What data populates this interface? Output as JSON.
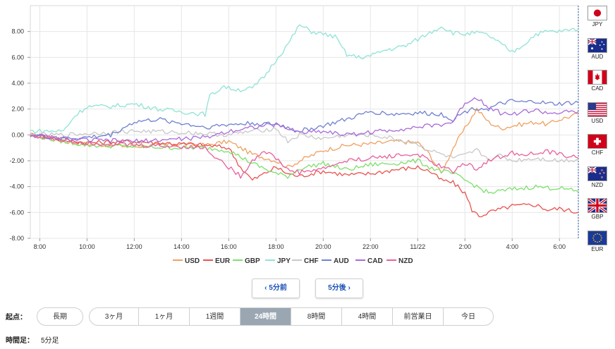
{
  "chart_data": {
    "type": "line",
    "x_ticks": [
      "8:00",
      "10:00",
      "12:00",
      "14:00",
      "16:00",
      "18:00",
      "20:00",
      "22:00",
      "11/22",
      "2:00",
      "4:00",
      "6:00"
    ],
    "y_ticks": [
      "8.00",
      "6.00",
      "4.00",
      "2.00",
      "0.00",
      "-2.00",
      "-4.00",
      "-6.00",
      "-8.00"
    ],
    "ylim": [
      -8,
      10
    ],
    "x_range": [
      7.6,
      30.8
    ],
    "grid": true,
    "legend_position": "bottom",
    "series": [
      {
        "name": "USD",
        "color": "#f0a060",
        "values": [
          [
            7.6,
            0
          ],
          [
            9,
            -0.5
          ],
          [
            10,
            -0.7
          ],
          [
            12,
            -0.9
          ],
          [
            14,
            -0.7
          ],
          [
            15,
            -0.8
          ],
          [
            16,
            -0.5
          ],
          [
            17,
            -1.5
          ],
          [
            18,
            -2.0
          ],
          [
            18.5,
            -2.5
          ],
          [
            19,
            -2.0
          ],
          [
            20,
            -1.2
          ],
          [
            21,
            -0.8
          ],
          [
            22,
            -0.7
          ],
          [
            23,
            -0.5
          ],
          [
            24,
            -0.6
          ],
          [
            24.5,
            -1.5
          ],
          [
            25,
            -3.0
          ],
          [
            25.5,
            -1.0
          ],
          [
            26,
            0.5
          ],
          [
            26.5,
            2.0
          ],
          [
            27,
            1.0
          ],
          [
            27.5,
            0.5
          ],
          [
            28,
            0.7
          ],
          [
            29,
            1.0
          ],
          [
            29.5,
            0.8
          ],
          [
            30,
            1.2
          ],
          [
            30.8,
            1.6
          ]
        ]
      },
      {
        "name": "EUR",
        "color": "#e8524f",
        "values": [
          [
            7.6,
            0
          ],
          [
            9,
            -0.4
          ],
          [
            10,
            -0.6
          ],
          [
            12,
            -0.5
          ],
          [
            14,
            -0.7
          ],
          [
            15,
            -0.8
          ],
          [
            16,
            -1.0
          ],
          [
            16.5,
            -2.5
          ],
          [
            17,
            -3.5
          ],
          [
            17.5,
            -3.0
          ],
          [
            18,
            -2.5
          ],
          [
            18.5,
            -3.0
          ],
          [
            19,
            -3.2
          ],
          [
            20,
            -2.8
          ],
          [
            21,
            -3.1
          ],
          [
            22,
            -3.0
          ],
          [
            23,
            -2.7
          ],
          [
            24,
            -2.5
          ],
          [
            24.5,
            -2.8
          ],
          [
            25,
            -3.5
          ],
          [
            25.5,
            -3.7
          ],
          [
            26,
            -4.5
          ],
          [
            26.3,
            -5.8
          ],
          [
            26.6,
            -6.3
          ],
          [
            27,
            -6.0
          ],
          [
            28,
            -5.5
          ],
          [
            29,
            -5.4
          ],
          [
            29.5,
            -5.8
          ],
          [
            30,
            -5.7
          ],
          [
            30.8,
            -6.0
          ]
        ]
      },
      {
        "name": "GBP",
        "color": "#7be06b",
        "values": [
          [
            7.6,
            0
          ],
          [
            9,
            -0.5
          ],
          [
            10,
            -0.8
          ],
          [
            12,
            -0.9
          ],
          [
            14,
            -1.0
          ],
          [
            15,
            -1.0
          ],
          [
            16,
            -1.2
          ],
          [
            17,
            -2.2
          ],
          [
            18,
            -3.0
          ],
          [
            18.5,
            -3.2
          ],
          [
            19,
            -2.6
          ],
          [
            20,
            -2.2
          ],
          [
            21,
            -2.7
          ],
          [
            22,
            -2.3
          ],
          [
            23,
            -2.2
          ],
          [
            24,
            -2.0
          ],
          [
            24.5,
            -2.5
          ],
          [
            25,
            -2.8
          ],
          [
            25.5,
            -3.0
          ],
          [
            26,
            -3.5
          ],
          [
            26.5,
            -4.0
          ],
          [
            27,
            -4.5
          ],
          [
            28,
            -4.2
          ],
          [
            29,
            -4.0
          ],
          [
            29.5,
            -4.1
          ],
          [
            30,
            -4.1
          ],
          [
            30.8,
            -4.4
          ]
        ]
      },
      {
        "name": "JPY",
        "color": "#8fe3d6",
        "values": [
          [
            7.6,
            0.3
          ],
          [
            9,
            0.3
          ],
          [
            9.5,
            1.5
          ],
          [
            10,
            2.2
          ],
          [
            11,
            2.2
          ],
          [
            12,
            2.4
          ],
          [
            13,
            2.0
          ],
          [
            14,
            1.8
          ],
          [
            15,
            1.6
          ],
          [
            15.2,
            3.0
          ],
          [
            15.8,
            3.8
          ],
          [
            16,
            3.6
          ],
          [
            16.5,
            3.5
          ],
          [
            17,
            3.6
          ],
          [
            17.5,
            4.5
          ],
          [
            18,
            5.8
          ],
          [
            18.5,
            7.0
          ],
          [
            19,
            8.5
          ],
          [
            19.5,
            8.0
          ],
          [
            20,
            7.8
          ],
          [
            20.5,
            7.6
          ],
          [
            21,
            6.2
          ],
          [
            21.5,
            6.0
          ],
          [
            22,
            6.1
          ],
          [
            22.5,
            6.5
          ],
          [
            23,
            6.7
          ],
          [
            23.5,
            6.9
          ],
          [
            24,
            7.4
          ],
          [
            24.5,
            7.9
          ],
          [
            25,
            8.4
          ],
          [
            25.5,
            7.9
          ],
          [
            26,
            7.8
          ],
          [
            26.5,
            7.9
          ],
          [
            27,
            7.7
          ],
          [
            28,
            6.4
          ],
          [
            28.5,
            7.0
          ],
          [
            29,
            7.8
          ],
          [
            29.5,
            8.0
          ],
          [
            30,
            8.0
          ],
          [
            30.8,
            8.2
          ]
        ]
      },
      {
        "name": "CHF",
        "color": "#c8c8c8",
        "values": [
          [
            7.6,
            0
          ],
          [
            9,
            0
          ],
          [
            10,
            0.1
          ],
          [
            12,
            0.3
          ],
          [
            14,
            0.2
          ],
          [
            15,
            0.1
          ],
          [
            16,
            0
          ],
          [
            17,
            0.3
          ],
          [
            18,
            0.5
          ],
          [
            18.5,
            -0.5
          ],
          [
            19,
            0
          ],
          [
            20,
            -0.3
          ],
          [
            21,
            0
          ],
          [
            22,
            0
          ],
          [
            23,
            -0.3
          ],
          [
            24,
            -0.7
          ],
          [
            24.5,
            -1.2
          ],
          [
            25,
            -1.5
          ],
          [
            25.5,
            -1.8
          ],
          [
            26,
            -1.6
          ],
          [
            26.5,
            -1.2
          ],
          [
            27,
            -1.9
          ],
          [
            27.5,
            -1.6
          ],
          [
            28,
            -2.0
          ],
          [
            29,
            -1.8
          ],
          [
            30,
            -2.0
          ],
          [
            30.8,
            -1.9
          ]
        ]
      },
      {
        "name": "AUD",
        "color": "#7080d0",
        "values": [
          [
            7.6,
            0
          ],
          [
            9,
            -0.3
          ],
          [
            10,
            -0.2
          ],
          [
            11,
            0
          ],
          [
            12,
            1.0
          ],
          [
            13,
            1.2
          ],
          [
            14,
            0.9
          ],
          [
            15,
            0.6
          ],
          [
            16,
            0.8
          ],
          [
            17,
            0.9
          ],
          [
            18,
            0.8
          ],
          [
            19,
            0.3
          ],
          [
            20,
            0.7
          ],
          [
            21,
            1.2
          ],
          [
            22,
            1.8
          ],
          [
            23,
            1.6
          ],
          [
            24,
            1.7
          ],
          [
            25,
            1.6
          ],
          [
            25.5,
            1.2
          ],
          [
            26,
            1.8
          ],
          [
            26.5,
            2.1
          ],
          [
            27,
            2.0
          ],
          [
            27.5,
            2.4
          ],
          [
            28,
            2.6
          ],
          [
            28.5,
            2.5
          ],
          [
            29,
            2.6
          ],
          [
            29.5,
            2.4
          ],
          [
            30,
            2.4
          ],
          [
            30.8,
            2.5
          ]
        ]
      },
      {
        "name": "CAD",
        "color": "#a86ad8",
        "values": [
          [
            7.6,
            0
          ],
          [
            9,
            -0.3
          ],
          [
            10,
            -0.4
          ],
          [
            12,
            -0.5
          ],
          [
            14,
            -0.3
          ],
          [
            15,
            -0.2
          ],
          [
            16,
            0.3
          ],
          [
            17,
            0.6
          ],
          [
            18,
            0.8
          ],
          [
            19,
            0.2
          ],
          [
            20,
            0.3
          ],
          [
            21,
            0
          ],
          [
            22,
            0.2
          ],
          [
            23,
            0.4
          ],
          [
            24,
            0.6
          ],
          [
            25,
            0.8
          ],
          [
            25.5,
            1.0
          ],
          [
            26,
            2.5
          ],
          [
            26.5,
            2.9
          ],
          [
            27,
            2.2
          ],
          [
            27.5,
            1.7
          ],
          [
            28,
            1.6
          ],
          [
            28.5,
            1.8
          ],
          [
            29,
            1.9
          ],
          [
            29.5,
            1.7
          ],
          [
            30,
            1.7
          ],
          [
            30.8,
            1.8
          ]
        ]
      },
      {
        "name": "NZD",
        "color": "#e8609c",
        "values": [
          [
            7.6,
            0
          ],
          [
            9,
            -0.4
          ],
          [
            10,
            -0.6
          ],
          [
            12,
            -0.8
          ],
          [
            14,
            -0.9
          ],
          [
            15,
            -1.0
          ],
          [
            15.5,
            -1.8
          ],
          [
            16,
            -2.5
          ],
          [
            16.5,
            -3.2
          ],
          [
            17,
            -2.0
          ],
          [
            17.5,
            -1.2
          ],
          [
            18,
            -1.8
          ],
          [
            18.5,
            -2.7
          ],
          [
            19,
            -2.9
          ],
          [
            20,
            -2.6
          ],
          [
            21,
            -2.0
          ],
          [
            22,
            -1.8
          ],
          [
            23,
            -1.6
          ],
          [
            24,
            -1.5
          ],
          [
            24.5,
            -2.0
          ],
          [
            25,
            -2.5
          ],
          [
            25.5,
            -2.8
          ],
          [
            26,
            -2.2
          ],
          [
            26.5,
            -2.6
          ],
          [
            27,
            -2.0
          ],
          [
            27.5,
            -1.7
          ],
          [
            28,
            -1.4
          ],
          [
            29,
            -1.5
          ],
          [
            29.5,
            -1.3
          ],
          [
            30,
            -1.5
          ],
          [
            30.8,
            -1.8
          ]
        ]
      }
    ]
  },
  "flags": [
    {
      "code": "JPY",
      "icon": "japan-flag-icon"
    },
    {
      "code": "AUD",
      "icon": "australia-flag-icon"
    },
    {
      "code": "CAD",
      "icon": "canada-flag-icon"
    },
    {
      "code": "USD",
      "icon": "usa-flag-icon"
    },
    {
      "code": "CHF",
      "icon": "switzerland-flag-icon"
    },
    {
      "code": "NZD",
      "icon": "newzealand-flag-icon"
    },
    {
      "code": "GBP",
      "icon": "uk-flag-icon"
    },
    {
      "code": "EUR",
      "icon": "eu-flag-icon"
    }
  ],
  "nav": {
    "prev": "‹ 5分前",
    "next": "5分後 ›"
  },
  "period": {
    "label": "起点：",
    "long": "長期",
    "options": [
      "3ヶ月",
      "1ヶ月",
      "1週間",
      "24時間",
      "8時間",
      "4時間",
      "前営業日",
      "今日"
    ],
    "active": "24時間"
  },
  "footer": {
    "label": "時間足：",
    "value": "5分足"
  }
}
